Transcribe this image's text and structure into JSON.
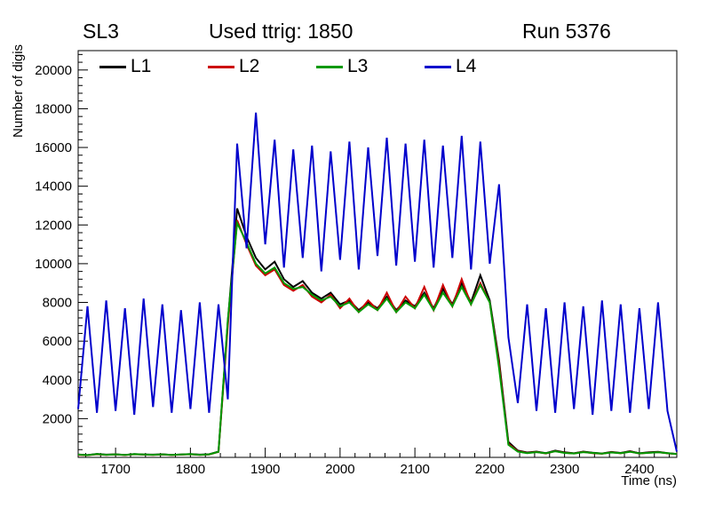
{
  "header": {
    "left": "SL3",
    "center": "Used ttrig: 1850",
    "right": "Run 5376"
  },
  "chart_data": {
    "type": "line",
    "title": "Used ttrig: 1850",
    "xlabel": "Time (ns)",
    "ylabel": "Number of digis",
    "xlim": [
      1650,
      2450
    ],
    "ylim": [
      0,
      21000
    ],
    "x_ticks": [
      1700,
      1800,
      1900,
      2000,
      2100,
      2200,
      2300,
      2400
    ],
    "y_ticks": [
      2000,
      4000,
      6000,
      8000,
      10000,
      12000,
      14000,
      16000,
      18000,
      20000
    ],
    "x_minor_step": 20,
    "y_minor_step": 400,
    "grid": false,
    "legend_position": "top-inside-horizontal",
    "x": [
      1650.0,
      1662.5,
      1675.0,
      1687.5,
      1700.0,
      1712.5,
      1725.0,
      1737.5,
      1750.0,
      1762.5,
      1775.0,
      1787.5,
      1800.0,
      1812.5,
      1825.0,
      1837.5,
      1850.0,
      1862.5,
      1875.0,
      1887.5,
      1900.0,
      1912.5,
      1925.0,
      1937.5,
      1950.0,
      1962.5,
      1975.0,
      1987.5,
      2000.0,
      2012.5,
      2025.0,
      2037.5,
      2050.0,
      2062.5,
      2075.0,
      2087.5,
      2100.0,
      2112.5,
      2125.0,
      2137.5,
      2150.0,
      2162.5,
      2175.0,
      2187.5,
      2200.0,
      2212.5,
      2225.0,
      2237.5,
      2250.0,
      2262.5,
      2275.0,
      2287.5,
      2300.0,
      2312.5,
      2325.0,
      2337.5,
      2350.0,
      2362.5,
      2375.0,
      2387.5,
      2400.0,
      2412.5,
      2425.0,
      2437.5,
      2450.0
    ],
    "series": [
      {
        "name": "L1",
        "color": "#000000",
        "values": [
          150,
          120,
          180,
          140,
          160,
          130,
          170,
          150,
          140,
          160,
          130,
          150,
          170,
          140,
          160,
          300,
          7000,
          12850,
          11400,
          10300,
          9700,
          10100,
          9200,
          8800,
          9100,
          8500,
          8200,
          8500,
          7900,
          8100,
          7600,
          8000,
          7700,
          8300,
          7600,
          8100,
          7800,
          8500,
          7700,
          8700,
          7900,
          9000,
          8000,
          9400,
          8100,
          5000,
          800,
          350,
          250,
          300,
          220,
          350,
          260,
          210,
          300,
          240,
          200,
          280,
          230,
          320,
          210,
          260,
          290,
          220,
          180
        ]
      },
      {
        "name": "L2",
        "color": "#cc0000",
        "values": [
          130,
          110,
          160,
          130,
          150,
          120,
          160,
          140,
          130,
          150,
          120,
          140,
          160,
          130,
          150,
          280,
          6800,
          12250,
          11000,
          9900,
          9400,
          9700,
          8900,
          8600,
          8900,
          8300,
          8000,
          8400,
          7700,
          8200,
          7500,
          8100,
          7600,
          8500,
          7500,
          8300,
          7700,
          8800,
          7600,
          8900,
          7800,
          9200,
          7900,
          9000,
          8000,
          4800,
          700,
          320,
          230,
          280,
          200,
          320,
          240,
          200,
          280,
          220,
          190,
          260,
          210,
          300,
          200,
          240,
          270,
          210,
          170
        ]
      },
      {
        "name": "L3",
        "color": "#009900",
        "values": [
          140,
          115,
          170,
          135,
          155,
          125,
          165,
          145,
          135,
          155,
          125,
          145,
          165,
          135,
          155,
          290,
          7100,
          12100,
          11100,
          10000,
          9500,
          9800,
          9000,
          8700,
          8800,
          8400,
          8100,
          8300,
          7800,
          8000,
          7500,
          7900,
          7600,
          8200,
          7500,
          8000,
          7700,
          8400,
          7600,
          8500,
          7800,
          8800,
          7900,
          8900,
          8000,
          4600,
          650,
          300,
          220,
          270,
          210,
          310,
          230,
          200,
          270,
          230,
          195,
          250,
          220,
          290,
          205,
          235,
          260,
          215,
          175
        ]
      },
      {
        "name": "L4",
        "color": "#0000cc",
        "values": [
          2500,
          7800,
          2300,
          8100,
          2400,
          7700,
          2200,
          8200,
          2600,
          7900,
          2300,
          7600,
          2500,
          8000,
          2300,
          7900,
          3000,
          16200,
          10800,
          17800,
          11000,
          16400,
          9800,
          15900,
          10300,
          16100,
          9600,
          15800,
          10200,
          16300,
          9700,
          16000,
          10400,
          16500,
          9900,
          16200,
          10100,
          16400,
          9800,
          16100,
          10300,
          16600,
          9700,
          16300,
          10000,
          14100,
          6200,
          2800,
          7900,
          2400,
          7700,
          2300,
          8000,
          2500,
          7800,
          2200,
          8100,
          2400,
          7900,
          2300,
          7700,
          2500,
          8000,
          2400,
          300
        ]
      }
    ]
  }
}
